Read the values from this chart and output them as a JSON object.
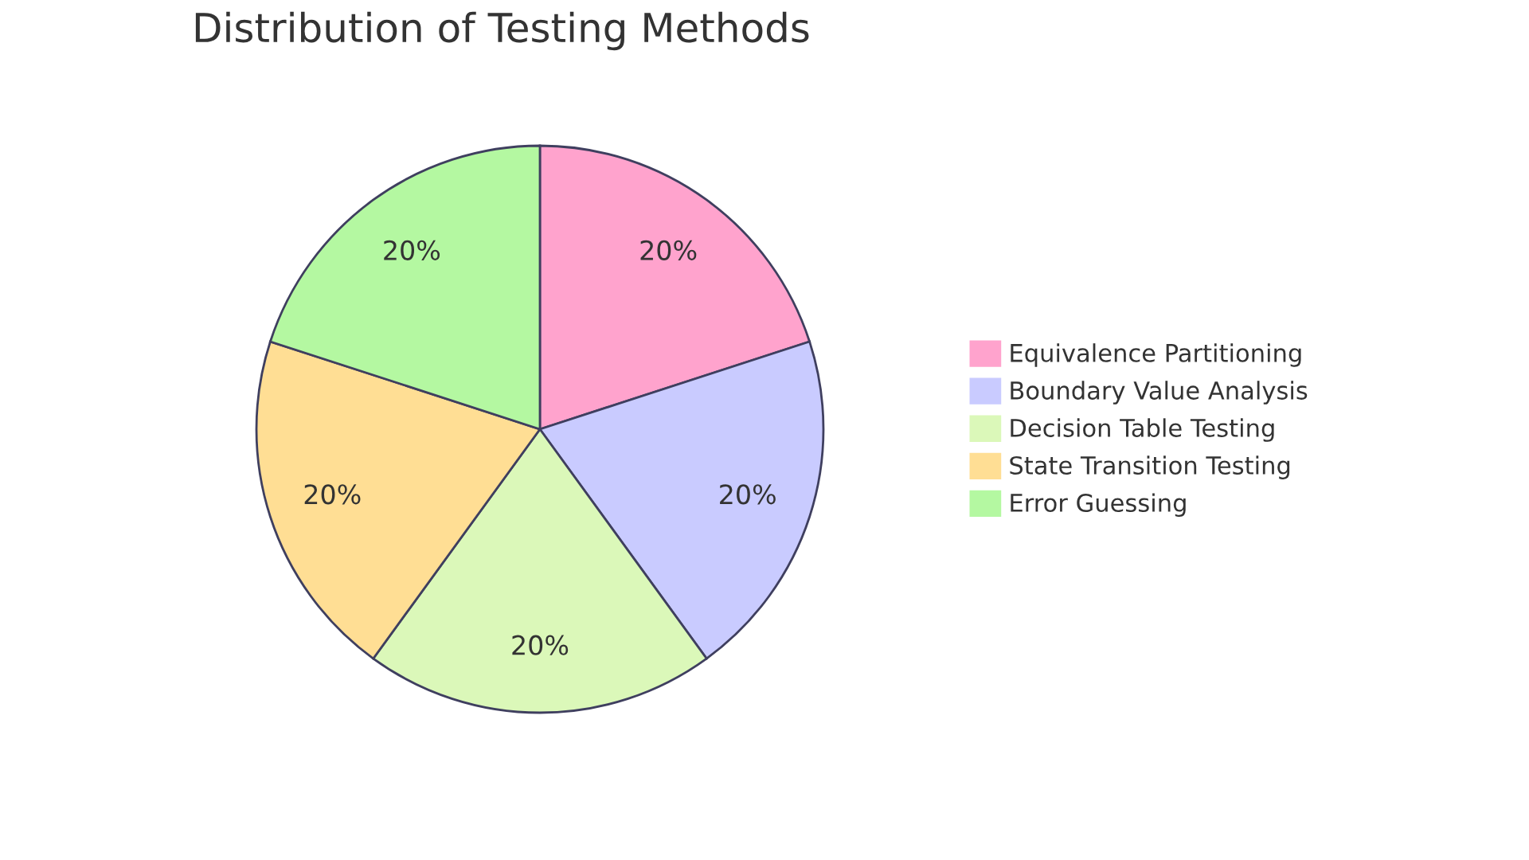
{
  "chart_data": {
    "type": "pie",
    "title": "Distribution of Testing Methods",
    "categories": [
      "Equivalence Partitioning",
      "Boundary Value Analysis",
      "Decision Table Testing",
      "State Transition Testing",
      "Error Guessing"
    ],
    "values": [
      20,
      20,
      20,
      20,
      20
    ],
    "colors": [
      "#ffa3cd",
      "#c9cbff",
      "#dbf8b9",
      "#ffde94",
      "#b4f8a1"
    ],
    "value_labels": [
      "20%",
      "20%",
      "20%",
      "20%",
      "20%"
    ],
    "legend": "right"
  }
}
